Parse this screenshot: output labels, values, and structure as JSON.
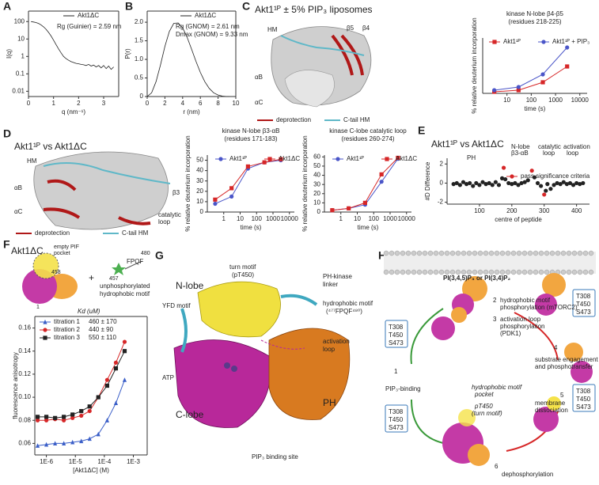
{
  "chart_data": [
    {
      "type": "line",
      "xlabel": "q (nm⁻¹)",
      "ylabel": "I(q)",
      "ylog": true,
      "xlim": [
        0,
        3.6
      ],
      "ylim": [
        0.005,
        400
      ],
      "xticks": [
        0,
        1,
        2,
        3
      ],
      "yticks": [
        0.01,
        0.1,
        1,
        10,
        100
      ],
      "annotations": [
        "Rg (Guinier) = 2.59 nm"
      ],
      "x": [
        0.1,
        0.2,
        0.3,
        0.4,
        0.5,
        0.6,
        0.7,
        0.8,
        0.9,
        1.0,
        1.1,
        1.2,
        1.3,
        1.4,
        1.5,
        1.6,
        1.7,
        1.8,
        1.9,
        2.0,
        2.1,
        2.2,
        2.3,
        2.4,
        2.5,
        2.6,
        2.7,
        2.8,
        2.9,
        3.0,
        3.1,
        3.2,
        3.3,
        3.4
      ],
      "series": [
        {
          "name": "Akt1ΔC",
          "color": "#222222",
          "values": [
            100,
            95,
            88,
            78,
            65,
            50,
            36,
            24,
            15,
            8.5,
            4.8,
            2.7,
            1.6,
            1.0,
            0.75,
            0.6,
            0.5,
            0.45,
            0.4,
            0.38,
            0.35,
            0.33,
            0.3,
            0.35,
            0.28,
            0.32,
            0.25,
            0.3,
            0.22,
            0.3,
            0.2,
            0.28,
            0.18,
            0.25
          ]
        }
      ]
    },
    {
      "type": "line",
      "xlabel": "r (nm)",
      "ylabel": "P(r)",
      "xlim": [
        0,
        10
      ],
      "ylim": [
        0,
        2.3
      ],
      "xticks": [
        0,
        2,
        4,
        6,
        8,
        10
      ],
      "yticks": [
        0,
        0.5,
        {
          "value": 1,
          "label": "1.0"
        },
        1.5,
        {
          "value": 2,
          "label": "2.0"
        }
      ],
      "annotations": [
        "Rg (GNOM) = 2.61 nm",
        "Dmax (GNOM) = 9.33 nm"
      ],
      "x": [
        0,
        0.5,
        1,
        1.5,
        2,
        2.5,
        3,
        3.5,
        4,
        4.5,
        5,
        5.5,
        6,
        6.5,
        7,
        7.5,
        8,
        8.5,
        9,
        9.33
      ],
      "series": [
        {
          "name": "Akt1ΔC",
          "color": "#222222",
          "values": [
            0,
            0.1,
            0.4,
            0.85,
            1.35,
            1.75,
            1.97,
            1.98,
            1.85,
            1.6,
            1.28,
            0.95,
            0.65,
            0.4,
            0.22,
            0.1,
            0.04,
            0.01,
            0,
            0
          ]
        }
      ]
    },
    {
      "type": "line",
      "title": "kinase N-lobe β4-β5",
      "subtitle": "(residues 218-225)",
      "xlabel": "time (s)",
      "ylabel": "% relative deuterium incorporation",
      "xlog": true,
      "xlim": [
        1,
        20000
      ],
      "ylim": [
        0,
        35
      ],
      "xticks": [
        10,
        100,
        1000,
        10000
      ],
      "x": [
        3,
        30,
        300,
        3000
      ],
      "series": [
        {
          "name": "Akt1¹ᴾ",
          "color": "#d62728",
          "marker": "square",
          "values": [
            1,
            2,
            7,
            17
          ]
        },
        {
          "name": "Akt1¹ᴾ + PIP₃",
          "color": "#4a55c8",
          "marker": "circle",
          "values": [
            2,
            4,
            12,
            29
          ]
        }
      ]
    },
    {
      "type": "line",
      "title": "kinase N-lobe β3-αB",
      "subtitle": "(residues 171-183)",
      "xlabel": "time (s)",
      "ylabel": "% relative deuterium incorporation",
      "xlog": true,
      "xlim": [
        0.1,
        20000
      ],
      "ylim": [
        0,
        55
      ],
      "xticks": [
        1,
        10,
        100,
        1000,
        10000
      ],
      "yticks": [
        0,
        10,
        20,
        30,
        40,
        50
      ],
      "x": [
        0.3,
        3,
        30,
        300,
        3000
      ],
      "series": [
        {
          "name": "Akt1¹ᴾ",
          "color": "#4a55c8",
          "marker": "circle",
          "values": [
            8,
            15,
            42,
            48,
            50
          ]
        },
        {
          "name": "Akt1ΔC",
          "color": "#d62728",
          "marker": "square",
          "values": [
            12,
            23,
            44,
            48,
            51
          ]
        }
      ]
    },
    {
      "type": "line",
      "title": "kinase C-lobe catalytic loop",
      "subtitle": "(residues 260-274)",
      "xlabel": "time (s)",
      "ylabel": "% relative deuterium incorporation",
      "xlog": true,
      "xlim": [
        0.1,
        20000
      ],
      "ylim": [
        0,
        62
      ],
      "xticks": [
        1,
        10,
        100,
        1000,
        10000
      ],
      "yticks": [
        0,
        10,
        20,
        30,
        40,
        50,
        60
      ],
      "x": [
        0.3,
        3,
        30,
        300,
        3000
      ],
      "series": [
        {
          "name": "Akt1¹ᴾ",
          "color": "#4a55c8",
          "marker": "circle",
          "values": [
            2,
            4,
            8,
            33,
            58
          ]
        },
        {
          "name": "Akt1ΔC",
          "color": "#d62728",
          "marker": "square",
          "values": [
            2,
            4,
            10,
            41,
            59
          ]
        }
      ]
    },
    {
      "type": "scatter",
      "xlabel": "centre of peptide",
      "ylabel": "#D Difference",
      "xlim": [
        0,
        440
      ],
      "ylim": [
        -2.2,
        2.6
      ],
      "xticks": [
        100,
        200,
        300,
        400
      ],
      "yticks": [
        -2,
        0,
        2
      ],
      "annotations": [
        "PH",
        "N-lobe",
        "β3-αB",
        "catalytic",
        "loop",
        "activation",
        "loop"
      ],
      "series": [
        {
          "color": "#222222",
          "x": [
            20,
            30,
            40,
            50,
            60,
            70,
            80,
            90,
            100,
            110,
            120,
            130,
            140,
            150,
            160,
            170,
            180,
            190,
            200,
            210,
            220,
            230,
            240,
            250,
            270,
            280,
            290,
            305,
            310,
            320,
            330,
            340,
            350,
            360,
            370,
            380,
            390,
            400,
            410,
            420
          ],
          "values": [
            -0.1,
            0,
            -0.2,
            0.1,
            -0.1,
            0,
            -0.3,
            0,
            -0.2,
            0.1,
            -0.1,
            0,
            -0.2,
            0.1,
            -0.2,
            0.5,
            0.4,
            0,
            -0.1,
            0,
            -0.2,
            0,
            0.1,
            0.3,
            0.6,
            0,
            -0.3,
            -0.8,
            -0.1,
            -0.6,
            -0.2,
            0,
            -0.1,
            0.1,
            -0.1,
            0,
            -0.2,
            0,
            -0.1,
            0
          ]
        },
        {
          "name": "pass significance criteria",
          "color": "#d62728",
          "x": [
            175,
            262,
            300
          ],
          "values": [
            1.6,
            1.3,
            -1.2
          ]
        }
      ]
    },
    {
      "type": "line",
      "xlabel": "[Akt1ΔC] (M)",
      "ylabel": "fluorescence anisotropy",
      "xlog": true,
      "legend_title": "Kd (uM)",
      "xlim": [
        4e-07,
        0.003
      ],
      "ylim": [
        0.05,
        0.17
      ],
      "xticks": [
        {
          "value": 1e-06,
          "label": "1E-6"
        },
        {
          "value": 1e-05,
          "label": "1E-5"
        },
        {
          "value": 0.0001,
          "label": "1E-4"
        },
        {
          "value": 0.001,
          "label": "1E-3"
        }
      ],
      "yticks": [
        0.06,
        0.08,
        {
          "value": 0.1,
          "label": "0.10"
        },
        0.12,
        0.14,
        0.16
      ],
      "x": [
        5e-07,
        1e-06,
        2e-06,
        4e-06,
        8e-06,
        1.6e-05,
        3.1e-05,
        6.2e-05,
        0.000125,
        0.00025,
        0.0005
      ],
      "series": [
        {
          "name": "titration 1",
          "kd": "460 ± 170",
          "color": "#3b5fc8",
          "marker": "triangle",
          "values": [
            0.058,
            0.059,
            0.06,
            0.06,
            0.061,
            0.062,
            0.064,
            0.068,
            0.08,
            0.095,
            0.115
          ]
        },
        {
          "name": "titration 2",
          "kd": "440 ± 90",
          "color": "#d62728",
          "marker": "circle",
          "values": [
            0.08,
            0.08,
            0.081,
            0.08,
            0.082,
            0.084,
            0.088,
            0.1,
            0.115,
            0.13,
            0.148
          ]
        },
        {
          "name": "titration 3",
          "kd": "550 ± 110",
          "color": "#222222",
          "marker": "square",
          "values": [
            0.083,
            0.083,
            0.082,
            0.083,
            0.085,
            0.088,
            0.092,
            0.1,
            0.11,
            0.125,
            0.14
          ]
        }
      ]
    }
  ],
  "panels": {
    "letters": [
      "A",
      "B",
      "C",
      "D",
      "E",
      "F",
      "G",
      "H"
    ],
    "C": {
      "title": "Akt1¹ᴾ ± 5% PIP₃ liposomes",
      "labels": [
        "HM",
        "β5",
        "β4",
        "αB",
        "αC"
      ],
      "legend": [
        "deprotection",
        "C-tail HM"
      ]
    },
    "D": {
      "title": "Akt1¹ᴾ vs Akt1ΔC",
      "labels": [
        "HM",
        "αB",
        "β3",
        "αC",
        "catalytic",
        "loop"
      ],
      "legend": [
        "deprotection",
        "C-tail HM"
      ]
    },
    "E": {
      "title": "Akt1¹ᴾ vs Akt1ΔC"
    },
    "F": {
      "title": "Akt1ΔC",
      "labels": [
        "empty PIF",
        "pocket",
        "458",
        "+",
        "457",
        "FPQF",
        "480",
        "unphosphorylated",
        "hydrophobic motif",
        "1"
      ]
    },
    "G": {
      "labels": [
        "turn motif",
        "(pT450)",
        "N-lobe",
        "PH-kinase",
        "linker",
        "YFD motif",
        "hydrophobic motif",
        "(⁴⁷⁷FPQF⁴⁸⁰)",
        "activation",
        "loop",
        "ATP",
        "C-lobe",
        "PH",
        "PIP₃ binding site"
      ]
    },
    "H": {
      "membrane": "PI(3,4,5)P₃ or PI(3,4)P₂",
      "steps": [
        "1",
        "PIP₃-binding",
        "2",
        "hydrophobic motif",
        "phosphorylation (mTORC2)",
        "3",
        "activation loop",
        "phosphorylation",
        "(PDK1)",
        "4",
        "substrate engagement",
        "and phosphotransfer",
        "5",
        "membrane",
        "dissociation",
        "6",
        "dephosphorylation"
      ],
      "sites": [
        "T308",
        "T450",
        "S473"
      ],
      "notes": [
        "hydrophobic motif",
        "pocket",
        "pT450",
        "(turn motif)"
      ]
    }
  }
}
